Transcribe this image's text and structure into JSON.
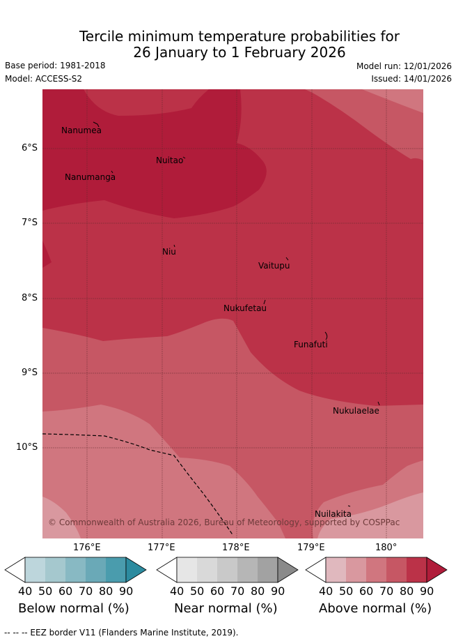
{
  "title": {
    "line1": "Tercile minimum temperature probabilities for",
    "line2": "26 January to 1 February 2026"
  },
  "meta": {
    "base_period": "Base period: 1981-2018",
    "model": "Model: ACCESS-S2",
    "model_run": "Model run: 12/01/2026",
    "issued": "Issued: 14/01/2026"
  },
  "axes": {
    "x_ticks": [
      "176°E",
      "177°E",
      "178°E",
      "179°E",
      "180°"
    ],
    "y_ticks": [
      "6°S",
      "7°S",
      "8°S",
      "9°S",
      "10°S"
    ]
  },
  "places": [
    {
      "name": "Nanumea"
    },
    {
      "name": "Nuitao"
    },
    {
      "name": "Nanumanga"
    },
    {
      "name": "Niu"
    },
    {
      "name": "Vaitupu"
    },
    {
      "name": "Nukufetau"
    },
    {
      "name": "Funafuti"
    },
    {
      "name": "Nukulaelae"
    },
    {
      "name": "Nuilakita"
    }
  ],
  "copyright": "© Commonwealth of Australia 2026, Bureau of Meteorology, supported by COSPPac",
  "legends": [
    {
      "title": "Below normal (%)",
      "ticks": [
        "40",
        "50",
        "60",
        "70",
        "80",
        "90"
      ],
      "colors": [
        "#ffffff",
        "#bdd6dc",
        "#a5c8ce",
        "#88b9c3",
        "#6aa9b7",
        "#4a9cad",
        "#2c8b9f"
      ]
    },
    {
      "title": "Near normal (%)",
      "ticks": [
        "40",
        "50",
        "60",
        "70",
        "80",
        "90"
      ],
      "colors": [
        "#ffffff",
        "#e6e6e6",
        "#d9d9d9",
        "#c9c9c9",
        "#b6b6b6",
        "#a2a2a2",
        "#8a8a8a"
      ]
    },
    {
      "title": "Above normal (%)",
      "ticks": [
        "40",
        "50",
        "60",
        "70",
        "80",
        "90"
      ],
      "colors": [
        "#ffffff",
        "#e0b8be",
        "#d9989f",
        "#d0767f",
        "#c65764",
        "#bb3248",
        "#b01c3a"
      ]
    }
  ],
  "footer": "--  --  -- EEZ border V11 (Flanders Marine Institute, 2019).",
  "colors": {
    "above_50": "#d9989f",
    "above_60": "#d0767f",
    "above_70": "#c65764",
    "above_80": "#bb3248",
    "above_90": "#b01c3a"
  }
}
